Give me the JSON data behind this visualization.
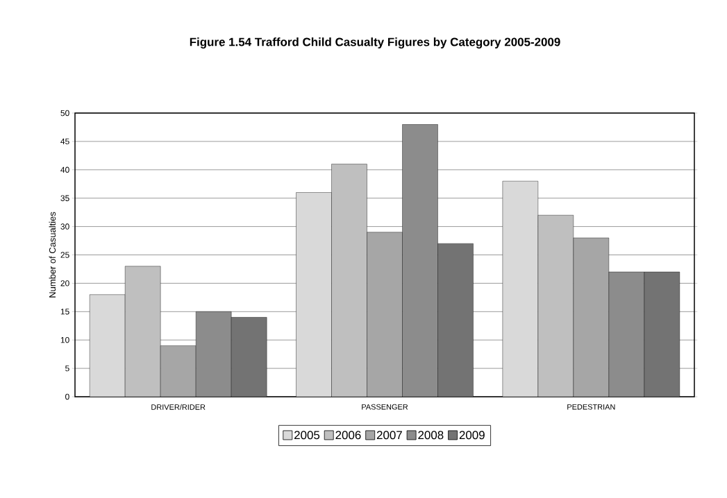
{
  "chart_data": {
    "type": "bar",
    "title": "Figure 1.54 Trafford Child Casualty Figures by Category 2005-2009",
    "ylabel": "Number of Casualties",
    "categories": [
      "DRIVER/RIDER",
      "PASSENGER",
      "PEDESTRIAN"
    ],
    "series": [
      {
        "name": "2005",
        "color": "#d9d9d9",
        "values": [
          18,
          36,
          38
        ]
      },
      {
        "name": "2006",
        "color": "#bfbfbf",
        "values": [
          23,
          41,
          32
        ]
      },
      {
        "name": "2007",
        "color": "#a6a6a6",
        "values": [
          9,
          29,
          28
        ]
      },
      {
        "name": "2008",
        "color": "#8c8c8c",
        "values": [
          15,
          48,
          22
        ]
      },
      {
        "name": "2009",
        "color": "#737373",
        "values": [
          14,
          27,
          22
        ]
      }
    ],
    "ylim": [
      0,
      50
    ],
    "yticks": [
      0,
      5,
      10,
      15,
      20,
      25,
      30,
      35,
      40,
      45,
      50
    ],
    "grid": "y",
    "legend": "bottom"
  }
}
